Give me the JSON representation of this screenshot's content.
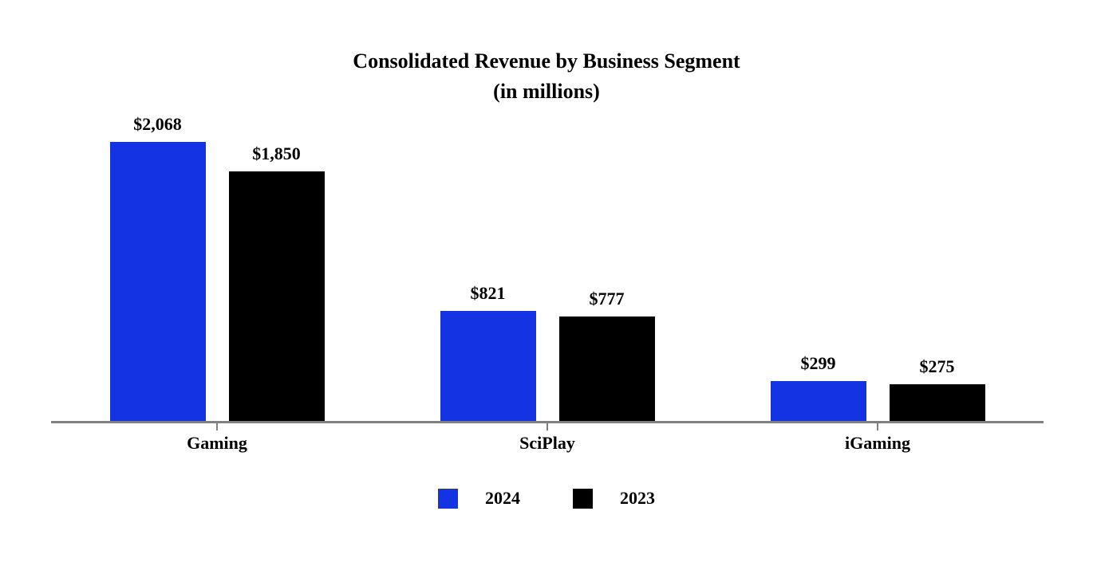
{
  "chart_data": {
    "type": "bar",
    "title": "Consolidated Revenue by Business Segment",
    "subtitle": "(in millions)",
    "categories": [
      "Gaming",
      "SciPlay",
      "iGaming"
    ],
    "series": [
      {
        "name": "2024",
        "color": "#1434E4",
        "values": [
          2068,
          821,
          299
        ],
        "labels": [
          "$2,068",
          "$821",
          "$299"
        ]
      },
      {
        "name": "2023",
        "color": "#000000",
        "values": [
          1850,
          777,
          275
        ],
        "labels": [
          "$1,850",
          "$777",
          "$275"
        ]
      }
    ],
    "ylim": [
      0,
      2068
    ],
    "grid": false,
    "legend_position": "bottom",
    "axis_color": "#808080",
    "value_prefix": "$"
  }
}
